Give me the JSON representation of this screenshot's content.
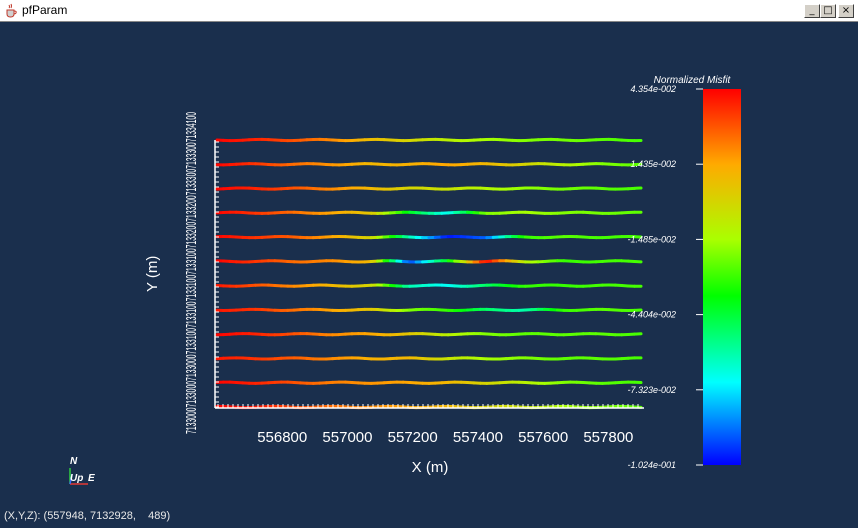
{
  "window": {
    "title": "pfParam",
    "minimize_glyph": "_",
    "restore_glyph": "□",
    "close_glyph": "×",
    "icon": "java-cup-icon"
  },
  "colors": {
    "background": "#1a2f4d",
    "axis": "#ffffff",
    "text": "#ffffff"
  },
  "orientation": {
    "north": "N",
    "up": "Up",
    "east": "E"
  },
  "status": {
    "text": "(X,Y,Z): (557948, 7132928,    489)"
  },
  "chart_data": {
    "type": "line",
    "xlabel": "X (m)",
    "ylabel": "Y (m)",
    "x_ticks": [
      556800,
      557000,
      557200,
      557400,
      557600,
      557800
    ],
    "x_tick_labels": [
      "556800",
      "557000",
      "557200",
      "557400",
      "557600",
      "557800"
    ],
    "y_tick_labels_text": "7133000713300071330007133100713310071331007133100713320071332007133300713330071334100",
    "colorbar": {
      "title": "Normalized Misfit",
      "labels": [
        "4.354e-002",
        "1.435e-002",
        "-1.485e-002",
        "-4.404e-002",
        "-7.323e-002",
        "-1.024e-001"
      ],
      "max": 0.04354,
      "min": -0.1024
    },
    "series": [
      {
        "values": [
          0.043,
          0.038,
          0.03,
          0.02,
          0.008,
          0.0,
          -0.01,
          -0.015,
          -0.02,
          -0.022,
          -0.025,
          -0.028
        ]
      },
      {
        "values": [
          0.043,
          0.035,
          0.025,
          0.018,
          0.01,
          0.012,
          0.015,
          0.01,
          0.0,
          -0.01,
          -0.02,
          -0.025
        ]
      },
      {
        "values": [
          0.043,
          0.038,
          0.03,
          0.02,
          0.01,
          0.0,
          -0.005,
          -0.012,
          -0.018,
          -0.022,
          -0.025,
          -0.028
        ]
      },
      {
        "values": [
          0.043,
          0.035,
          0.025,
          0.015,
          0.005,
          -0.04,
          -0.07,
          -0.02,
          -0.015,
          -0.02,
          -0.022,
          -0.025
        ]
      },
      {
        "values": [
          0.043,
          0.035,
          0.028,
          0.015,
          0.0,
          -0.06,
          -0.1,
          -0.09,
          -0.03,
          -0.025,
          -0.028,
          -0.028
        ]
      },
      {
        "values": [
          0.043,
          0.035,
          0.025,
          0.02,
          0.01,
          -0.095,
          -0.04,
          0.043,
          -0.01,
          -0.03,
          -0.028,
          -0.028
        ]
      },
      {
        "values": [
          0.04,
          0.03,
          0.02,
          0.01,
          0.0,
          -0.06,
          -0.07,
          -0.05,
          -0.03,
          -0.03,
          -0.028,
          -0.028
        ]
      },
      {
        "values": [
          0.04,
          0.035,
          0.025,
          0.015,
          0.005,
          -0.02,
          -0.03,
          -0.05,
          -0.06,
          -0.03,
          -0.025,
          -0.028
        ]
      },
      {
        "values": [
          0.043,
          0.038,
          0.03,
          0.02,
          0.015,
          0.005,
          -0.01,
          -0.02,
          -0.025,
          -0.025,
          -0.025,
          -0.028
        ]
      },
      {
        "values": [
          0.04,
          0.035,
          0.028,
          0.02,
          0.012,
          0.01,
          -0.005,
          -0.015,
          -0.02,
          -0.025,
          -0.025,
          -0.028
        ]
      },
      {
        "values": [
          0.043,
          0.038,
          0.03,
          0.022,
          0.018,
          0.015,
          0.01,
          0.0,
          -0.01,
          -0.02,
          -0.025,
          -0.028
        ]
      },
      {
        "values": [
          0.043,
          0.04,
          0.032,
          0.025,
          0.02,
          0.015,
          0.01,
          0.0,
          -0.005,
          -0.015,
          -0.02,
          -0.025
        ]
      }
    ]
  }
}
